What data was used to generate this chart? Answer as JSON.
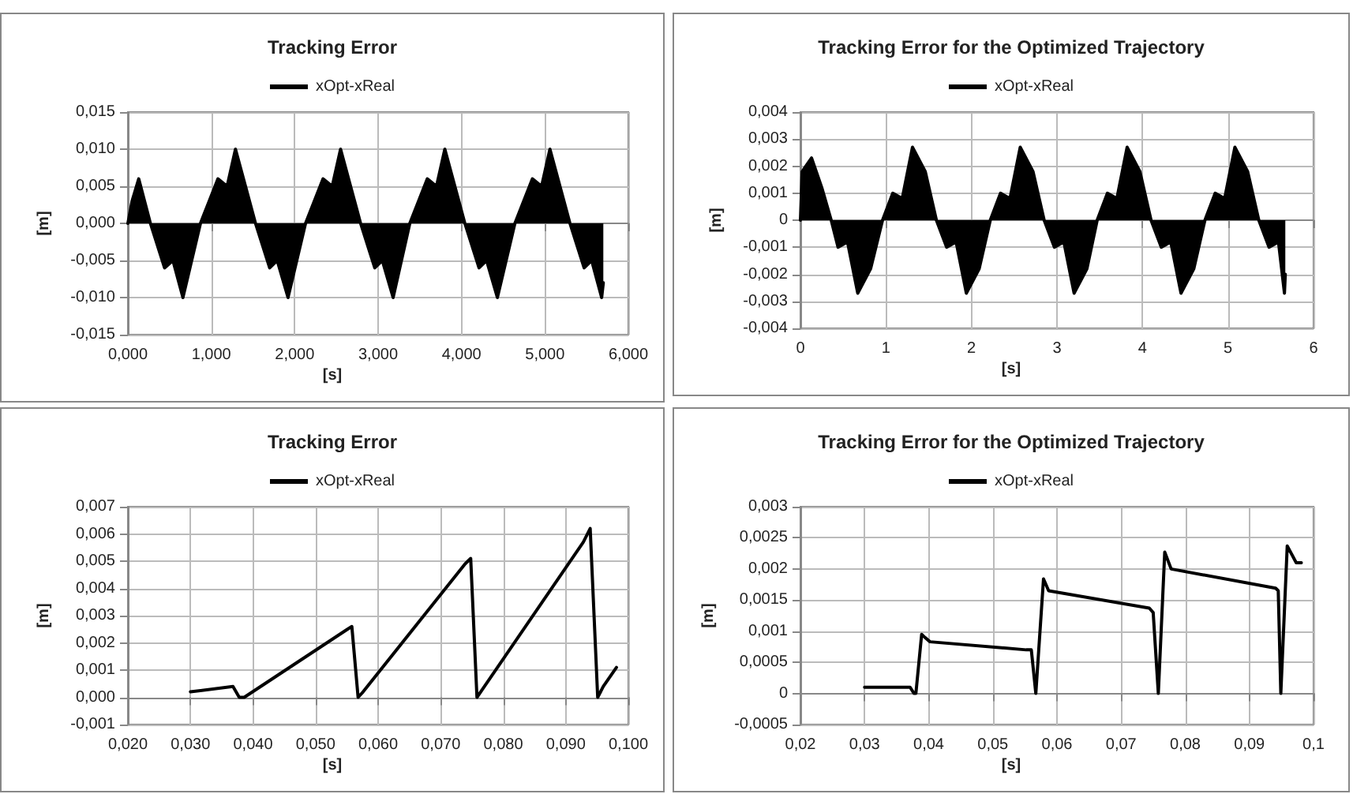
{
  "chart_data": [
    {
      "type": "area",
      "title": "Tracking Error",
      "xlabel": "[s]",
      "ylabel": "[m]",
      "legend": "top",
      "grid": true,
      "marker": "none",
      "line_style": "solid",
      "xlim": [
        0,
        6
      ],
      "xticks": [
        {
          "value": 0,
          "label": "0,000"
        },
        {
          "value": 1,
          "label": "1,000"
        },
        {
          "value": 2,
          "label": "2,000"
        },
        {
          "value": 3,
          "label": "3,000"
        },
        {
          "value": 4,
          "label": "4,000"
        },
        {
          "value": 5,
          "label": "5,000"
        },
        {
          "value": 6,
          "label": "6,000"
        }
      ],
      "ylim": [
        -0.015,
        0.015
      ],
      "yticks": [
        {
          "value": -0.015,
          "label": "-0,015"
        },
        {
          "value": -0.01,
          "label": "-0,010"
        },
        {
          "value": -0.005,
          "label": "-0,005"
        },
        {
          "value": 0,
          "label": "0,000"
        },
        {
          "value": 0.005,
          "label": "0,005"
        },
        {
          "value": 0.01,
          "label": "0,010"
        },
        {
          "value": 0.015,
          "label": "0,015"
        }
      ],
      "series": [
        {
          "name": "xOpt-xReal",
          "color": "#000000",
          "x": [
            0,
            0.05,
            0.13,
            0.27,
            0.44,
            0.54,
            0.66,
            0.87,
            1.08,
            1.19,
            1.29,
            1.53,
            1.7,
            1.79,
            1.92,
            2.13,
            2.34,
            2.45,
            2.55,
            2.79,
            2.96,
            3.05,
            3.18,
            3.38,
            3.59,
            3.7,
            3.8,
            4.04,
            4.21,
            4.3,
            4.43,
            4.64,
            4.85,
            4.96,
            5.06,
            5.3,
            5.47,
            5.56,
            5.68,
            5.7
          ],
          "values": [
            0,
            0.003,
            0.006,
            0,
            -0.006,
            -0.005,
            -0.01,
            0,
            0.006,
            0.005,
            0.01,
            0,
            -0.006,
            -0.005,
            -0.01,
            0,
            0.006,
            0.005,
            0.01,
            0,
            -0.006,
            -0.005,
            -0.01,
            0,
            0.006,
            0.005,
            0.01,
            0,
            -0.006,
            -0.005,
            -0.01,
            0,
            0.006,
            0.005,
            0.01,
            0,
            -0.006,
            -0.005,
            -0.01,
            -0.008
          ]
        }
      ]
    },
    {
      "type": "area",
      "title": "Tracking Error for the Optimized Trajectory",
      "xlabel": "[s]",
      "ylabel": "[m]",
      "legend": "top",
      "grid": true,
      "marker": "none",
      "line_style": "solid",
      "xlim": [
        0,
        6
      ],
      "xticks": [
        0,
        1,
        2,
        3,
        4,
        5,
        6
      ],
      "ylim": [
        -0.004,
        0.004
      ],
      "yticks": [
        {
          "value": -0.004,
          "label": "-0,004"
        },
        {
          "value": -0.003,
          "label": "-0,003"
        },
        {
          "value": -0.002,
          "label": "-0,002"
        },
        {
          "value": -0.001,
          "label": "-0,001"
        },
        {
          "value": 0,
          "label": "0"
        },
        {
          "value": 0.001,
          "label": "0,001"
        },
        {
          "value": 0.002,
          "label": "0,002"
        },
        {
          "value": 0.003,
          "label": "0,003"
        },
        {
          "value": 0.004,
          "label": "0,004"
        }
      ],
      "series": [
        {
          "name": "xOpt-xReal",
          "color": "#000000",
          "x": [
            0,
            0.02,
            0.13,
            0.25,
            0.36,
            0.44,
            0.55,
            0.67,
            0.82,
            0.96,
            1.08,
            1.19,
            1.31,
            1.46,
            1.59,
            1.71,
            1.82,
            1.94,
            2.09,
            2.22,
            2.34,
            2.45,
            2.57,
            2.72,
            2.85,
            2.97,
            3.08,
            3.2,
            3.35,
            3.47,
            3.59,
            3.7,
            3.82,
            3.97,
            4.1,
            4.22,
            4.33,
            4.45,
            4.6,
            4.73,
            4.85,
            4.96,
            5.08,
            5.23,
            5.36,
            5.48,
            5.59,
            5.66,
            5.67
          ],
          "values": [
            0,
            0.0018,
            0.0023,
            0.0012,
            0,
            -0.001,
            -0.0008,
            -0.0027,
            -0.0018,
            0,
            0.001,
            0.0008,
            0.0027,
            0.0018,
            0,
            -0.001,
            -0.0008,
            -0.0027,
            -0.0018,
            0,
            0.001,
            0.0008,
            0.0027,
            0.0018,
            0,
            -0.001,
            -0.0008,
            -0.0027,
            -0.0018,
            0,
            0.001,
            0.0008,
            0.0027,
            0.0018,
            0,
            -0.001,
            -0.0008,
            -0.0027,
            -0.0018,
            0,
            0.001,
            0.0008,
            0.0027,
            0.0018,
            0,
            -0.001,
            -0.0008,
            -0.0027,
            -0.002
          ]
        }
      ]
    },
    {
      "type": "line",
      "title": "Tracking Error",
      "xlabel": "[s]",
      "ylabel": "[m]",
      "legend": "top",
      "grid": true,
      "marker": "none",
      "line_style": "solid",
      "xlim": [
        0.02,
        0.1
      ],
      "xticks": [
        {
          "value": 0.02,
          "label": "0,020"
        },
        {
          "value": 0.03,
          "label": "0,030"
        },
        {
          "value": 0.04,
          "label": "0,040"
        },
        {
          "value": 0.05,
          "label": "0,050"
        },
        {
          "value": 0.06,
          "label": "0,060"
        },
        {
          "value": 0.07,
          "label": "0,070"
        },
        {
          "value": 0.08,
          "label": "0,080"
        },
        {
          "value": 0.09,
          "label": "0,090"
        },
        {
          "value": 0.1,
          "label": "0,100"
        }
      ],
      "ylim": [
        -0.001,
        0.007
      ],
      "yticks": [
        {
          "value": -0.001,
          "label": "-0,001"
        },
        {
          "value": 0,
          "label": "0,000"
        },
        {
          "value": 0.001,
          "label": "0,001"
        },
        {
          "value": 0.002,
          "label": "0,002"
        },
        {
          "value": 0.003,
          "label": "0,003"
        },
        {
          "value": 0.004,
          "label": "0,004"
        },
        {
          "value": 0.005,
          "label": "0,005"
        },
        {
          "value": 0.006,
          "label": "0,006"
        },
        {
          "value": 0.007,
          "label": "0,007"
        }
      ],
      "series": [
        {
          "name": "xOpt-xReal",
          "color": "#000000",
          "x": [
            0.03,
            0.0368,
            0.0378,
            0.0386,
            0.0551,
            0.0558,
            0.0568,
            0.0576,
            0.0739,
            0.0748,
            0.0758,
            0.0767,
            0.0928,
            0.0939,
            0.0951,
            0.096,
            0.0981
          ],
          "values": [
            0.0002,
            0.0004,
            0,
            0,
            0.0025,
            0.0026,
            0,
            0.0002,
            0.0049,
            0.0051,
            0,
            0.0003,
            0.0057,
            0.0062,
            0,
            0.0004,
            0.0011
          ]
        }
      ]
    },
    {
      "type": "line",
      "title": "Tracking Error for the Optimized Trajectory",
      "xlabel": "[s]",
      "ylabel": "[m]",
      "legend": "top",
      "grid": true,
      "marker": "none",
      "line_style": "solid",
      "xlim": [
        0.02,
        0.1
      ],
      "xticks": [
        {
          "value": 0.02,
          "label": "0,02"
        },
        {
          "value": 0.03,
          "label": "0,03"
        },
        {
          "value": 0.04,
          "label": "0,04"
        },
        {
          "value": 0.05,
          "label": "0,05"
        },
        {
          "value": 0.06,
          "label": "0,06"
        },
        {
          "value": 0.07,
          "label": "0,07"
        },
        {
          "value": 0.08,
          "label": "0,08"
        },
        {
          "value": 0.09,
          "label": "0,09"
        },
        {
          "value": 0.1,
          "label": "0,1"
        }
      ],
      "ylim": [
        -0.0005,
        0.003
      ],
      "yticks": [
        {
          "value": -0.0005,
          "label": "-0,0005"
        },
        {
          "value": 0,
          "label": "0"
        },
        {
          "value": 0.0005,
          "label": "0,0005"
        },
        {
          "value": 0.001,
          "label": "0,001"
        },
        {
          "value": 0.0015,
          "label": "0,0015"
        },
        {
          "value": 0.002,
          "label": "0,002"
        },
        {
          "value": 0.0025,
          "label": "0,0025"
        },
        {
          "value": 0.003,
          "label": "0,003"
        }
      ],
      "series": [
        {
          "name": "xOpt-xReal",
          "color": "#000000",
          "x": [
            0.03,
            0.0371,
            0.0377,
            0.038,
            0.0389,
            0.0394,
            0.0402,
            0.0552,
            0.056,
            0.0567,
            0.0579,
            0.0587,
            0.0744,
            0.075,
            0.0758,
            0.0768,
            0.0778,
            0.0941,
            0.0945,
            0.0949,
            0.0959,
            0.0973,
            0.0981
          ],
          "values": [
            0.0001,
            0.0001,
            0,
            0,
            0.00095,
            0.0009,
            0.00083,
            0.0007,
            0.0007,
            0,
            0.00184,
            0.00165,
            0.00137,
            0.0013,
            0,
            0.00227,
            0.002,
            0.00169,
            0.00165,
            0,
            0.00237,
            0.0021,
            0.0021
          ]
        }
      ]
    }
  ]
}
